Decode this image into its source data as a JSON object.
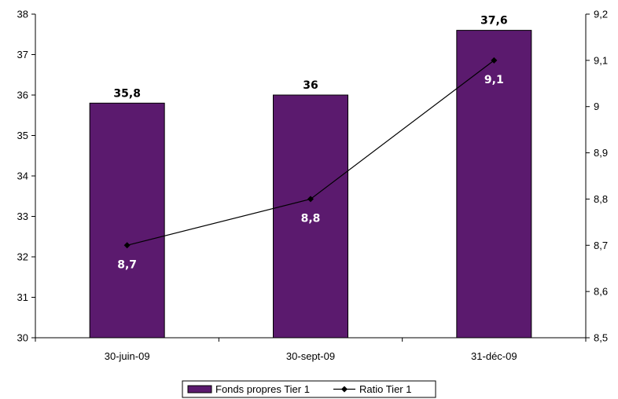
{
  "chart_data": {
    "type": "bar",
    "categories": [
      "30-juin-09",
      "30-sept-09",
      "31-déc-09"
    ],
    "series": [
      {
        "name": "Fonds propres Tier 1",
        "type": "bar",
        "axis": "left",
        "values": [
          35.8,
          36,
          37.6
        ],
        "labels": [
          "35,8",
          "36",
          "37,6"
        ],
        "color": "#5b1a6e"
      },
      {
        "name": "Ratio Tier 1",
        "type": "line",
        "axis": "right",
        "values": [
          8.7,
          8.8,
          9.1
        ],
        "labels": [
          "8,7",
          "8,8",
          "9,1"
        ],
        "color": "#000000"
      }
    ],
    "y_left": {
      "min": 30,
      "max": 38,
      "ticks": [
        30,
        31,
        32,
        33,
        34,
        35,
        36,
        37,
        38
      ],
      "tick_labels": [
        "30",
        "31",
        "32",
        "33",
        "34",
        "35",
        "36",
        "37",
        "38"
      ]
    },
    "y_right": {
      "min": 8.5,
      "max": 9.2,
      "ticks": [
        8.5,
        8.6,
        8.7,
        8.8,
        8.9,
        9.0,
        9.1,
        9.2
      ],
      "tick_labels": [
        "8,5",
        "8,6",
        "8,7",
        "8,8",
        "8,9",
        "9",
        "9,1",
        "9,2"
      ]
    },
    "grid": false,
    "legend": "bottom",
    "title": "",
    "xlabel": "",
    "ylabel": ""
  }
}
